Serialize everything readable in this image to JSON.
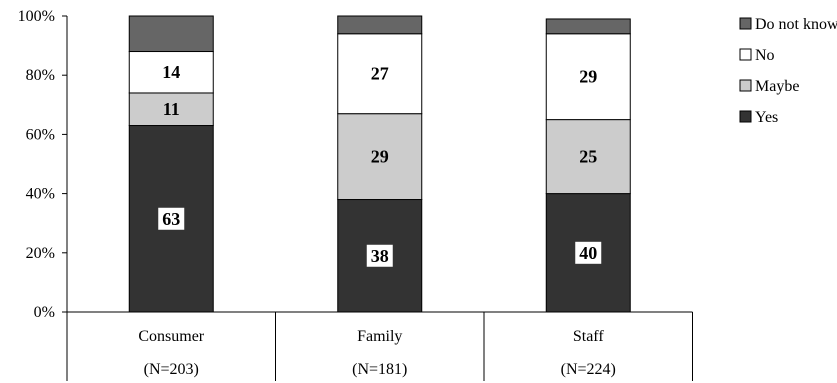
{
  "chart_data": {
    "type": "bar",
    "stacked": true,
    "categories": [
      "Consumer",
      "Family",
      "Staff"
    ],
    "category_sublabels": [
      "(N=203)",
      "(N=181)",
      "(N=224)"
    ],
    "series": [
      {
        "name": "Yes",
        "values": [
          63,
          38,
          40
        ],
        "color": "#333333"
      },
      {
        "name": "Maybe",
        "values": [
          11,
          29,
          25
        ],
        "color": "#cccccc"
      },
      {
        "name": "No",
        "values": [
          14,
          27,
          29
        ],
        "color": "#ffffff"
      },
      {
        "name": "Do not know",
        "values": [
          12,
          6,
          5
        ],
        "color": "#666666"
      }
    ],
    "labeled_series": [
      "Yes",
      "Maybe",
      "No"
    ],
    "ylim": [
      0,
      100
    ],
    "yticks": [
      "0%",
      "20%",
      "40%",
      "60%",
      "80%",
      "100%"
    ],
    "legend_position": "right",
    "legend_order": [
      "Do not know",
      "No",
      "Maybe",
      "Yes"
    ],
    "grid": false
  }
}
